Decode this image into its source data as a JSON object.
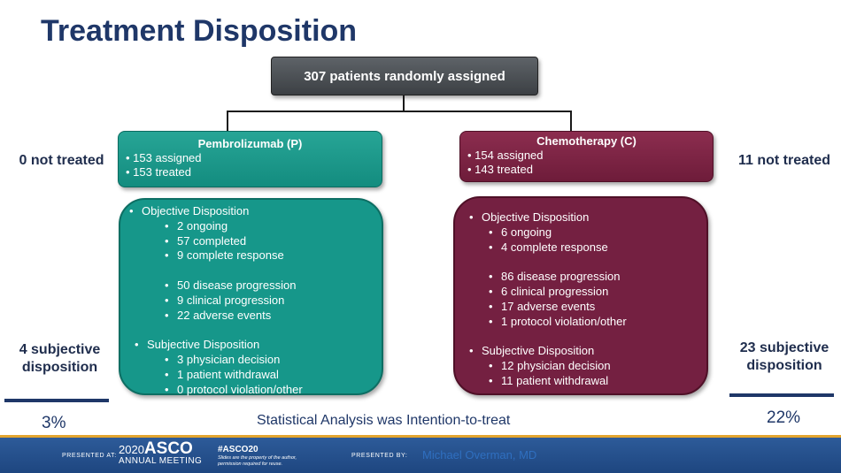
{
  "title": "Treatment Disposition",
  "randomized": "307 patients randomly assigned",
  "arms": {
    "pembro": {
      "name": "Pembrolizumab (P)",
      "lines": [
        "• 153 assigned",
        "• 153 treated"
      ],
      "not_treated": "0 not treated",
      "subjective_line1": "4 subjective",
      "subjective_line2": "disposition",
      "percent": "3%",
      "objective_header": "Objective Disposition",
      "objective_group1": [
        "2 ongoing",
        "57 completed",
        "9 complete response"
      ],
      "objective_group2": [
        "50 disease progression",
        "9 clinical progression",
        "22 adverse events"
      ],
      "subjective_header": "Subjective Disposition",
      "subjective_items": [
        "3 physician decision",
        "1 patient withdrawal",
        "0 protocol violation/other"
      ]
    },
    "chemo": {
      "name": "Chemotherapy (C)",
      "lines": [
        "• 154 assigned",
        "• 143 treated"
      ],
      "not_treated": "11 not treated",
      "subjective_line1": "23 subjective",
      "subjective_line2": "disposition",
      "percent": "22%",
      "objective_header": "Objective Disposition",
      "objective_group1": [
        "6 ongoing",
        "4 complete response"
      ],
      "objective_group2": [
        "86 disease progression",
        "6 clinical progression",
        "17 adverse events",
        "1 protocol violation/other"
      ],
      "subjective_header": "Subjective Disposition",
      "subjective_items": [
        "12 physician decision",
        "11 patient withdrawal"
      ]
    }
  },
  "footnote": "Statistical Analysis was Intention-to-treat",
  "footer": {
    "presented_at": "PRESENTED AT:",
    "year": "2020",
    "brand": "ASCO",
    "annual_meeting": "ANNUAL MEETING",
    "hashtag": "#ASCO20",
    "disclaimer_line1": "Slides are the property of the author,",
    "disclaimer_line2": "permission required for reuse.",
    "presented_by": "PRESENTED BY:",
    "presenter": "Michael Overman, MD"
  },
  "colors": {
    "pembro": "#16978a",
    "chemo": "#742041",
    "title": "#1f3768",
    "footer": "#1e4680"
  }
}
